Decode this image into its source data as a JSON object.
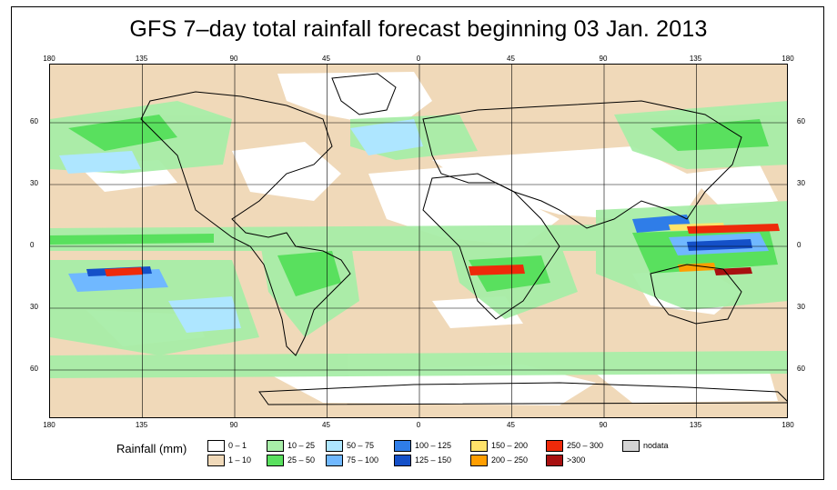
{
  "title": "GFS 7–day total rainfall forecast beginning 03 Jan. 2013",
  "axes": {
    "lon_labels": [
      "180",
      "135",
      "90",
      "45",
      "0",
      "45",
      "90",
      "135",
      "180"
    ],
    "lat_labels": [
      "60",
      "30",
      "0",
      "30",
      "60"
    ]
  },
  "legend": {
    "title": "Rainfall (mm)",
    "items": [
      {
        "label": "0 – 1",
        "color": "#ffffff"
      },
      {
        "label": "1 – 10",
        "color": "#f0d9b9"
      },
      {
        "label": "10 – 25",
        "color": "#a8eea8"
      },
      {
        "label": "25 – 50",
        "color": "#59e05e"
      },
      {
        "label": "50 – 75",
        "color": "#aee6ff"
      },
      {
        "label": "75 – 100",
        "color": "#70b8ff"
      },
      {
        "label": "100 – 125",
        "color": "#2f7de8"
      },
      {
        "label": "125 – 150",
        "color": "#1450c8"
      },
      {
        "label": "150 – 200",
        "color": "#ffe36a"
      },
      {
        "label": "200 – 250",
        "color": "#ff9e00"
      },
      {
        "label": "250 – 300",
        "color": "#ee2a0a"
      },
      {
        "label": ">300",
        "color": "#a81010"
      },
      {
        "label": "nodata",
        "color": "#d4d4d4"
      }
    ]
  }
}
